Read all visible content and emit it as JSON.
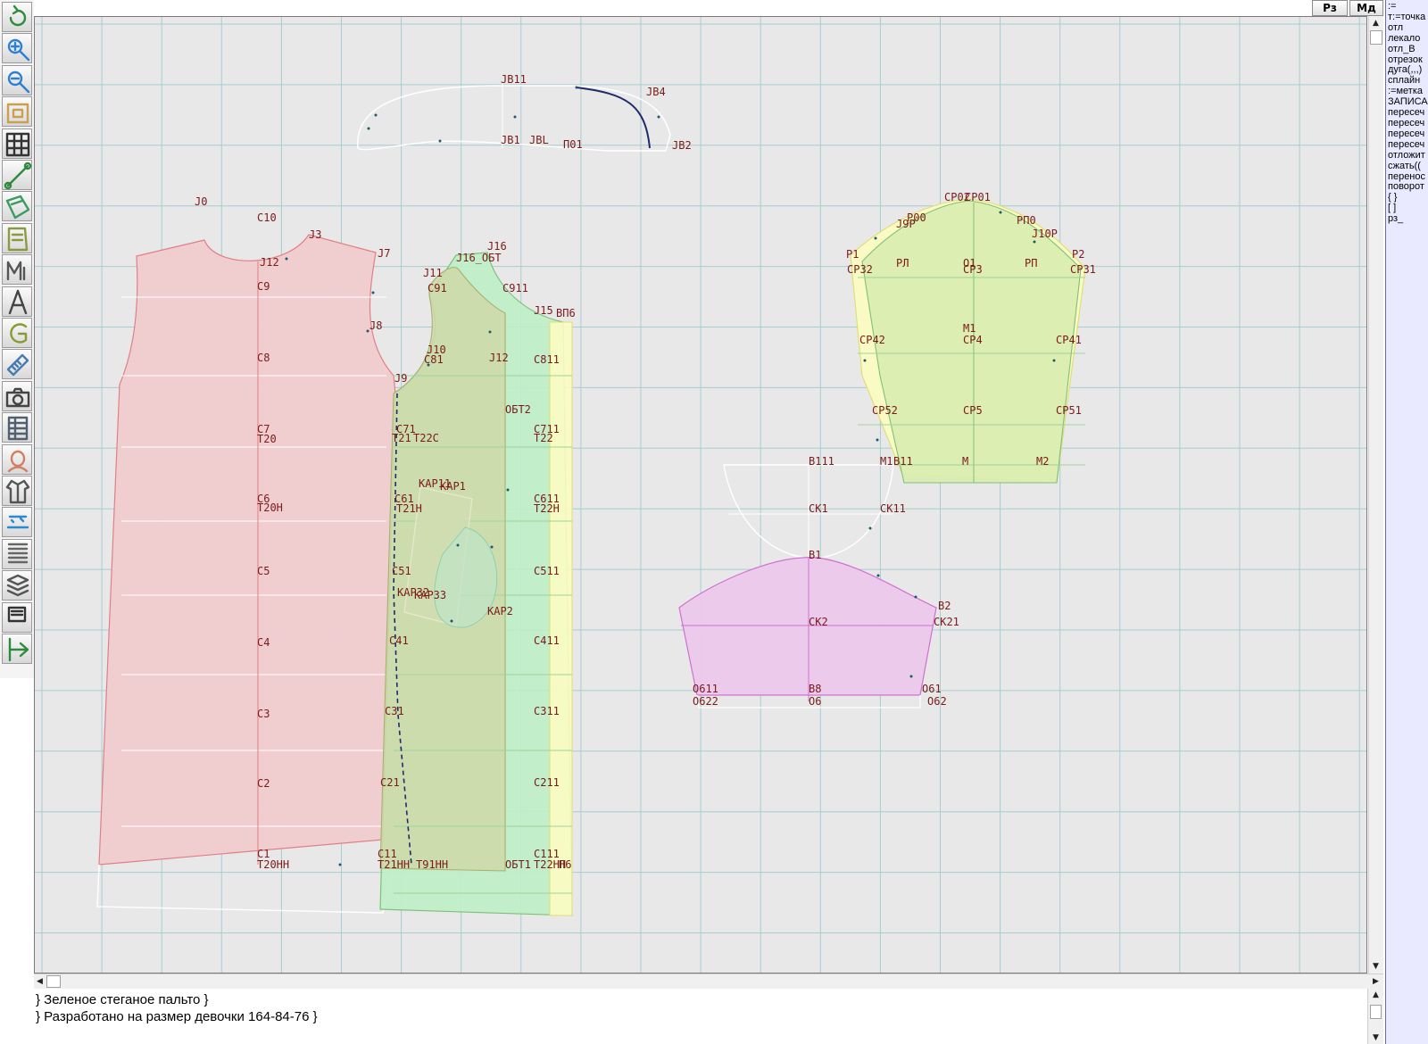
{
  "toolbar": {
    "tools": [
      {
        "name": "refresh-icon",
        "color": "#2e8b3d"
      },
      {
        "name": "zoom-in-icon",
        "color": "#2f7fd0"
      },
      {
        "name": "zoom-out-icon",
        "color": "#2f7fd0"
      },
      {
        "name": "zoom-window-icon",
        "color": "#c8a050"
      },
      {
        "name": "grid-icon",
        "color": "#333333"
      },
      {
        "name": "segment-icon",
        "color": "#2e8b3d"
      },
      {
        "name": "layout-icon",
        "color": "#3a9a60"
      },
      {
        "name": "pattern-icon",
        "color": "#8a9a40"
      },
      {
        "name": "measure-m-icon",
        "color": "#555555"
      },
      {
        "name": "compass-icon",
        "color": "#444444"
      },
      {
        "name": "graduate-g-icon",
        "color": "#8a9a30"
      },
      {
        "name": "ruler-icon",
        "color": "#4a7ab0"
      },
      {
        "name": "camera-icon",
        "color": "#444444"
      },
      {
        "name": "table-icon",
        "color": "#506070"
      },
      {
        "name": "avatar-icon",
        "color": "#d08060"
      },
      {
        "name": "jacket-icon",
        "color": "#555555"
      },
      {
        "name": "view-3d-icon",
        "color": "#2a8ad0"
      },
      {
        "name": "text-doc-icon",
        "color": "#666666"
      },
      {
        "name": "layers-icon",
        "color": "#555555"
      },
      {
        "name": "algorithm-icon",
        "color": "#333333"
      },
      {
        "name": "exit-icon",
        "color": "#2e8b3d"
      }
    ]
  },
  "topbar": {
    "rz_label": "Рз",
    "md_label": "Мд"
  },
  "command_panel": {
    "items": [
      ":=",
      "т:=точка",
      "отл",
      "лекало",
      "отл_В",
      "отрезок",
      "дуга(,,,)",
      "сплайн",
      ":=метка",
      "ЗАПИСА",
      "пересеч",
      "пересеч",
      "пересеч",
      "пересеч",
      "отложит",
      "сжать((",
      "перенос",
      "поворот",
      "{ }",
      "[ ]",
      "рз_"
    ]
  },
  "console": {
    "lines": [
      "} Зеленое стеганое пальто }",
      "} Разработано на размер девочки 164-84-76 }"
    ]
  },
  "drawing": {
    "colors": {
      "background": "#e8e8e8",
      "grid": "#a8ccd0",
      "back_fill": "#f0cccf",
      "back_stroke": "#e07f86",
      "front_fill": "#c9e2b2",
      "front_stroke": "#7ec07a",
      "facing_fill": "#bfeec7",
      "sleeve_fill": "#d9ecb0",
      "sleeve_yellow": "#fbfcc2",
      "hood_fill": "#ecc8ec",
      "hood_stroke": "#d070d0",
      "pocket_fill": "#d0ddb0",
      "outline_white": "#ffffff",
      "label": "#7a1a1a",
      "curve_dark": "#1f2a6e"
    },
    "labels": [
      {
        "t": "JB11"
      },
      {
        "t": "JB4"
      },
      {
        "t": "JB1"
      },
      {
        "t": "JBL"
      },
      {
        "t": "П01"
      },
      {
        "t": "JB2"
      },
      {
        "t": "J0"
      },
      {
        "t": "C10"
      },
      {
        "t": "J3"
      },
      {
        "t": "J7"
      },
      {
        "t": "J12"
      },
      {
        "t": "C9"
      },
      {
        "t": "J8"
      },
      {
        "t": "C8"
      },
      {
        "t": "J9"
      },
      {
        "t": "C7"
      },
      {
        "t": "T20"
      },
      {
        "t": "C6"
      },
      {
        "t": "T20H"
      },
      {
        "t": "C5"
      },
      {
        "t": "C4"
      },
      {
        "t": "C3"
      },
      {
        "t": "C2"
      },
      {
        "t": "C1"
      },
      {
        "t": "T20HH"
      },
      {
        "t": "J16"
      },
      {
        "t": "J16_ОБТ"
      },
      {
        "t": "J11"
      },
      {
        "t": "C91"
      },
      {
        "t": "C911"
      },
      {
        "t": "J15"
      },
      {
        "t": "ВП6"
      },
      {
        "t": "J10"
      },
      {
        "t": "C81"
      },
      {
        "t": "J12"
      },
      {
        "t": "C811"
      },
      {
        "t": "ОБТ2"
      },
      {
        "t": "C71"
      },
      {
        "t": "T21"
      },
      {
        "t": "T22C"
      },
      {
        "t": "C711"
      },
      {
        "t": "T22"
      },
      {
        "t": "KAP11"
      },
      {
        "t": "KAP1"
      },
      {
        "t": "C61"
      },
      {
        "t": "T21H"
      },
      {
        "t": "C611"
      },
      {
        "t": "T22H"
      },
      {
        "t": "C51"
      },
      {
        "t": "C511"
      },
      {
        "t": "KAP32"
      },
      {
        "t": "KAP33"
      },
      {
        "t": "KAP2"
      },
      {
        "t": "C41"
      },
      {
        "t": "C411"
      },
      {
        "t": "C31"
      },
      {
        "t": "C311"
      },
      {
        "t": "C21"
      },
      {
        "t": "C211"
      },
      {
        "t": "C11"
      },
      {
        "t": "C111"
      },
      {
        "t": "T21HH"
      },
      {
        "t": "T91HH"
      },
      {
        "t": "ОБТ1"
      },
      {
        "t": "T22HH"
      },
      {
        "t": "П6"
      },
      {
        "t": "CP02"
      },
      {
        "t": "CP01"
      },
      {
        "t": "J9P"
      },
      {
        "t": "P00"
      },
      {
        "t": "PП0"
      },
      {
        "t": "J10P"
      },
      {
        "t": "P1"
      },
      {
        "t": "P2"
      },
      {
        "t": "CP32"
      },
      {
        "t": "PЛ"
      },
      {
        "t": "O1"
      },
      {
        "t": "CP3"
      },
      {
        "t": "PП"
      },
      {
        "t": "CP31"
      },
      {
        "t": "M1"
      },
      {
        "t": "CP42"
      },
      {
        "t": "CP4"
      },
      {
        "t": "CP41"
      },
      {
        "t": "CP52"
      },
      {
        "t": "CP5"
      },
      {
        "t": "CP51"
      },
      {
        "t": "M1"
      },
      {
        "t": "B11"
      },
      {
        "t": "M"
      },
      {
        "t": "M2"
      },
      {
        "t": "B111"
      },
      {
        "t": "CK1"
      },
      {
        "t": "CK11"
      },
      {
        "t": "B1"
      },
      {
        "t": "B2"
      },
      {
        "t": "CK2"
      },
      {
        "t": "CK21"
      },
      {
        "t": "O611"
      },
      {
        "t": "O622"
      },
      {
        "t": "B8"
      },
      {
        "t": "O6"
      },
      {
        "t": "O61"
      },
      {
        "t": "O62"
      }
    ]
  }
}
